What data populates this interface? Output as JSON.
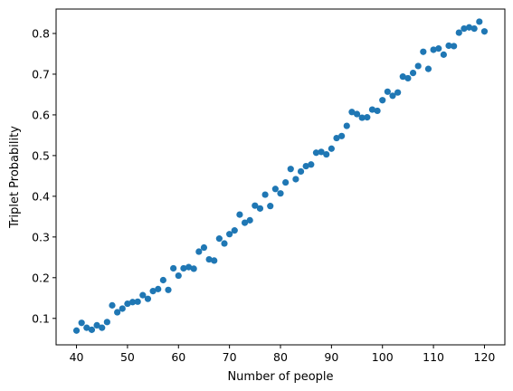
{
  "chart_data": {
    "type": "scatter",
    "xlabel": "Number of people",
    "ylabel": "Triplet Probability",
    "xlim": [
      36,
      124
    ],
    "ylim": [
      0.035,
      0.86
    ],
    "xticks": [
      40,
      50,
      60,
      70,
      80,
      90,
      100,
      110,
      120
    ],
    "yticks": [
      0.1,
      0.2,
      0.3,
      0.4,
      0.5,
      0.6,
      0.7,
      0.8
    ],
    "grid": false,
    "marker_color": "#1f77b4",
    "series": [
      {
        "x": [
          40,
          41,
          42,
          43,
          44,
          45,
          46,
          47,
          48,
          49,
          50,
          51,
          52,
          53,
          54,
          55,
          56,
          57,
          58,
          59,
          60,
          61,
          62,
          63,
          64,
          65,
          66,
          67,
          68,
          69,
          70,
          71,
          72,
          73,
          74,
          75,
          76,
          77,
          78,
          79,
          80,
          81,
          82,
          83,
          84,
          85,
          86,
          87,
          88,
          89,
          90,
          91,
          92,
          93,
          94,
          95,
          96,
          97,
          98,
          99,
          100,
          101,
          102,
          103,
          104,
          105,
          106,
          107,
          108,
          109,
          110,
          111,
          112,
          113,
          114,
          115,
          116,
          117,
          118,
          119,
          120
        ],
        "y": [
          0.07,
          0.089,
          0.077,
          0.072,
          0.083,
          0.077,
          0.091,
          0.132,
          0.115,
          0.124,
          0.136,
          0.14,
          0.141,
          0.157,
          0.148,
          0.167,
          0.172,
          0.194,
          0.17,
          0.223,
          0.205,
          0.223,
          0.226,
          0.222,
          0.264,
          0.274,
          0.245,
          0.242,
          0.296,
          0.284,
          0.307,
          0.316,
          0.355,
          0.335,
          0.341,
          0.377,
          0.37,
          0.404,
          0.376,
          0.418,
          0.407,
          0.434,
          0.467,
          0.442,
          0.461,
          0.474,
          0.478,
          0.507,
          0.509,
          0.503,
          0.517,
          0.543,
          0.548,
          0.573,
          0.607,
          0.602,
          0.593,
          0.594,
          0.613,
          0.61,
          0.636,
          0.657,
          0.647,
          0.655,
          0.694,
          0.69,
          0.703,
          0.72,
          0.755,
          0.713,
          0.76,
          0.763,
          0.748,
          0.77,
          0.769,
          0.802,
          0.812,
          0.815,
          0.812,
          0.829,
          0.805
        ]
      }
    ]
  }
}
